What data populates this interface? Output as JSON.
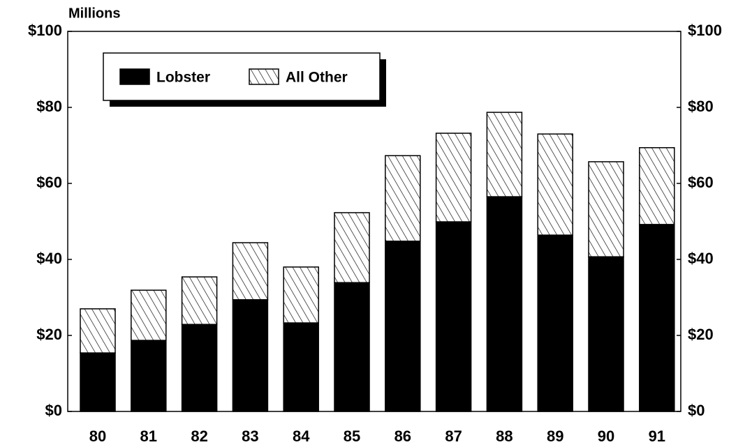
{
  "chart_data": {
    "type": "stacked_bar",
    "y_axis_label": "Millions",
    "categories": [
      "80",
      "81",
      "82",
      "83",
      "84",
      "85",
      "86",
      "87",
      "88",
      "89",
      "90",
      "91"
    ],
    "series": [
      {
        "name": "Lobster",
        "color": "#000000",
        "fill": "solid",
        "values": [
          15.4,
          18.7,
          22.9,
          29.4,
          23.3,
          33.9,
          44.8,
          49.9,
          56.5,
          46.4,
          40.7,
          49.2
        ]
      },
      {
        "name": "All Other",
        "color": "#000000",
        "fill": "hatch",
        "values": [
          11.6,
          13.2,
          12.5,
          15.0,
          14.7,
          18.4,
          22.5,
          23.3,
          22.2,
          26.6,
          25.0,
          20.2
        ]
      }
    ],
    "ylim": [
      0,
      100
    ],
    "yticks": [
      {
        "value": 0,
        "label": "$0"
      },
      {
        "value": 20,
        "label": "$20"
      },
      {
        "value": 40,
        "label": "$40"
      },
      {
        "value": 60,
        "label": "$60"
      },
      {
        "value": 80,
        "label": "$80"
      },
      {
        "value": 100,
        "label": "$100"
      }
    ],
    "y2lim": [
      0,
      100
    ],
    "y2ticks": [
      {
        "value": 0,
        "label": "$0"
      },
      {
        "value": 20,
        "label": "$20"
      },
      {
        "value": 40,
        "label": "$40"
      },
      {
        "value": 60,
        "label": "$60"
      },
      {
        "value": 80,
        "label": "$80"
      },
      {
        "value": 100,
        "label": "$100"
      }
    ],
    "legend": "top-left",
    "grid": false
  }
}
